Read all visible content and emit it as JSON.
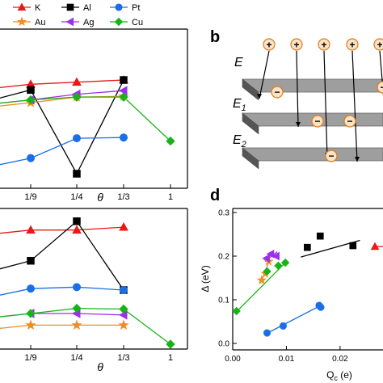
{
  "panel_labels": {
    "b": "b",
    "d": "d"
  },
  "legend": [
    {
      "name": "K",
      "color": "#e8191b",
      "marker": "triangle-up"
    },
    {
      "name": "Al",
      "color": "#000000",
      "marker": "square"
    },
    {
      "name": "Pt",
      "color": "#1a6fe8",
      "marker": "circle"
    },
    {
      "name": "Au",
      "color": "#f28c1c",
      "marker": "star"
    },
    {
      "name": "Ag",
      "color": "#9b30e8",
      "marker": "triangle-left"
    },
    {
      "name": "Cu",
      "color": "#19b319",
      "marker": "diamond"
    }
  ],
  "schematic": {
    "charge_positive": "+",
    "charge_negative": "−",
    "field_label_main": "E",
    "layer_labels": [
      {
        "base": "E",
        "sub": "1"
      },
      {
        "base": "E",
        "sub": "2"
      }
    ]
  },
  "chart_data": [
    {
      "type": "line",
      "panel": "a",
      "xlabel": "θ",
      "categories": [
        "1/9",
        "1/4",
        "1/3",
        "1"
      ],
      "series": [
        {
          "name": "K",
          "values": [
            0.63,
            0.645,
            0.66,
            null
          ]
        },
        {
          "name": "Al",
          "values": [
            0.59,
            0.0,
            0.66,
            null
          ]
        },
        {
          "name": "Pt",
          "values": [
            0.11,
            0.25,
            0.255,
            null
          ]
        },
        {
          "name": "Au",
          "values": [
            0.5,
            0.54,
            0.545,
            null
          ]
        },
        {
          "name": "Ag",
          "values": [
            0.52,
            0.56,
            0.585,
            null
          ]
        },
        {
          "name": "Cu",
          "values": [
            0.52,
            0.54,
            0.54,
            0.23
          ]
        }
      ]
    },
    {
      "type": "line",
      "panel": "c",
      "xlabel": "θ",
      "categories": [
        "1/9",
        "1/4",
        "1/3",
        "1"
      ],
      "series": [
        {
          "name": "K",
          "values": [
            0.78,
            0.78,
            0.8,
            null
          ]
        },
        {
          "name": "Al",
          "values": [
            0.57,
            0.84,
            0.37,
            null
          ]
        },
        {
          "name": "Pt",
          "values": [
            0.38,
            0.39,
            0.37,
            null
          ]
        },
        {
          "name": "Au",
          "values": [
            0.13,
            0.13,
            0.13,
            null
          ]
        },
        {
          "name": "Ag",
          "values": [
            0.21,
            0.21,
            0.2,
            null
          ]
        },
        {
          "name": "Cu",
          "values": [
            0.21,
            0.245,
            0.24,
            0.0
          ]
        }
      ]
    },
    {
      "type": "scatter",
      "panel": "d",
      "xlabel": "Q",
      "xlabel_sub": "c",
      "xlabel_unit": " (e)",
      "ylabel": "Δ (eV)",
      "xlim": [
        0.0,
        0.028
      ],
      "ylim": [
        0.0,
        0.3
      ],
      "xticks": [
        "0.00",
        "0.01",
        "0.02"
      ],
      "xtick_values": [
        0.0,
        0.01,
        0.02
      ],
      "yticks": [
        "0.0",
        "0.1",
        "0.2",
        "0.3"
      ],
      "ytick_values": [
        0.0,
        0.1,
        0.2,
        0.3
      ],
      "series": [
        {
          "name": "K",
          "x": [
            0.0265
          ],
          "y": [
            0.222
          ],
          "fit": [
            [
              0.0262,
              0.222
            ],
            [
              0.028,
              0.222
            ]
          ]
        },
        {
          "name": "Al",
          "x": [
            0.0139,
            0.0163,
            0.0224
          ],
          "y": [
            0.22,
            0.246,
            0.224
          ],
          "fit": [
            [
              0.0127,
              0.198
            ],
            [
              0.0237,
              0.236
            ]
          ]
        },
        {
          "name": "Pt",
          "x": [
            0.0064,
            0.0094,
            0.0161,
            0.0164
          ],
          "y": [
            0.024,
            0.04,
            0.087,
            0.083
          ],
          "fit": [
            [
              0.0062,
              0.022
            ],
            [
              0.0167,
              0.089
            ]
          ]
        },
        {
          "name": "Au",
          "x": [
            0.0054,
            0.0061,
            0.0067
          ],
          "y": [
            0.145,
            0.16,
            0.188
          ],
          "fit": [
            [
              0.0052,
              0.138
            ],
            [
              0.0069,
              0.192
            ]
          ]
        },
        {
          "name": "Ag",
          "x": [
            0.0063,
            0.0071,
            0.0081
          ],
          "y": [
            0.195,
            0.205,
            0.2
          ],
          "fit": [
            [
              0.006,
              0.188
            ],
            [
              0.0083,
              0.21
            ]
          ]
        },
        {
          "name": "Cu",
          "x": [
            0.0007,
            0.0064,
            0.0085,
            0.0098
          ],
          "y": [
            0.074,
            0.165,
            0.178,
            0.185
          ],
          "fit": [
            [
              0.0005,
              0.07
            ],
            [
              0.0102,
              0.19
            ]
          ]
        }
      ]
    }
  ]
}
